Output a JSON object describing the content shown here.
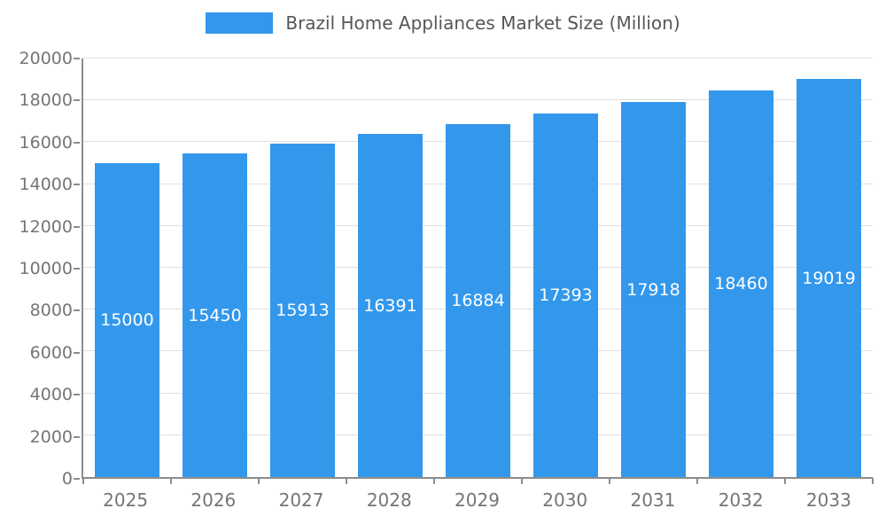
{
  "chart_data": {
    "type": "bar",
    "title": "Brazil Home Appliances Market Size (Million)",
    "categories": [
      "2025",
      "2026",
      "2027",
      "2028",
      "2029",
      "2030",
      "2031",
      "2032",
      "2033"
    ],
    "values": [
      15000,
      15450,
      15913,
      16391,
      16884,
      17393,
      17918,
      18460,
      19019
    ],
    "xlabel": "",
    "ylabel": "",
    "ylim": [
      0,
      20000
    ],
    "ytick_step": 2000,
    "grid": true,
    "legend_position": "top",
    "bar_label_position": "inside-center",
    "colors": {
      "bar": "#3398EC",
      "bar_label": "#ffffff",
      "axis_line": "#8c8c8c",
      "axis_text": "#757575",
      "gridline": "#e0e0e0",
      "legend_text": "#565656"
    }
  }
}
